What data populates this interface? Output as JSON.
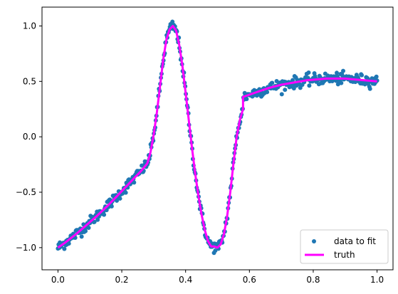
{
  "chart_data": {
    "type": "scatter",
    "title": "",
    "xlabel": "",
    "ylabel": "",
    "xlim": [
      -0.05,
      1.05
    ],
    "ylim": [
      -1.2,
      1.17
    ],
    "xticks": [
      0.0,
      0.2,
      0.4,
      0.6,
      0.8,
      1.0
    ],
    "xtick_labels": [
      "0.0",
      "0.2",
      "0.4",
      "0.6",
      "0.8",
      "1.0"
    ],
    "yticks": [
      -1.0,
      -0.5,
      0.0,
      0.5,
      1.0
    ],
    "ytick_labels": [
      "−1.0",
      "−0.5",
      "0.0",
      "0.5",
      "1.0"
    ],
    "grid": false,
    "legend_position": "lower-right",
    "series": [
      {
        "name": "data to fit",
        "kind": "scatter",
        "color": "#1f77b4",
        "x_range": [
          0.0,
          1.0
        ],
        "n_points": 500,
        "noise_sd": 0.025
      },
      {
        "name": "truth",
        "kind": "line",
        "color": "#ff00ff",
        "x": [
          0.0,
          0.02,
          0.04,
          0.06,
          0.08,
          0.1,
          0.12,
          0.14,
          0.16,
          0.18,
          0.2,
          0.22,
          0.24,
          0.26,
          0.28,
          0.29,
          0.3,
          0.31,
          0.32,
          0.33,
          0.34,
          0.35,
          0.36,
          0.37,
          0.38,
          0.39,
          0.4,
          0.41,
          0.42,
          0.43,
          0.44,
          0.45,
          0.46,
          0.47,
          0.48,
          0.49,
          0.5,
          0.51,
          0.52,
          0.53,
          0.54,
          0.55,
          0.56,
          0.57,
          0.58,
          0.58,
          0.6,
          0.62,
          0.64,
          0.66,
          0.68,
          0.7,
          0.72,
          0.74,
          0.76,
          0.78,
          0.8,
          0.82,
          0.84,
          0.86,
          0.88,
          0.9,
          0.92,
          0.94,
          0.96,
          0.98,
          1.0
        ],
        "y": [
          -1.0,
          -0.96,
          -0.915,
          -0.87,
          -0.82,
          -0.77,
          -0.72,
          -0.665,
          -0.61,
          -0.55,
          -0.49,
          -0.43,
          -0.37,
          -0.31,
          -0.24,
          -0.14,
          0.02,
          0.22,
          0.46,
          0.7,
          0.88,
          0.97,
          1.0,
          0.96,
          0.83,
          0.64,
          0.4,
          0.15,
          -0.1,
          -0.33,
          -0.53,
          -0.7,
          -0.84,
          -0.94,
          -0.99,
          -0.99,
          -1.0,
          -0.97,
          -0.88,
          -0.72,
          -0.5,
          -0.24,
          0.0,
          0.15,
          0.25,
          0.36,
          0.38,
          0.4,
          0.42,
          0.44,
          0.455,
          0.47,
          0.48,
          0.49,
          0.5,
          0.51,
          0.515,
          0.52,
          0.525,
          0.525,
          0.525,
          0.525,
          0.52,
          0.515,
          0.51,
          0.505,
          0.5
        ]
      }
    ]
  }
}
